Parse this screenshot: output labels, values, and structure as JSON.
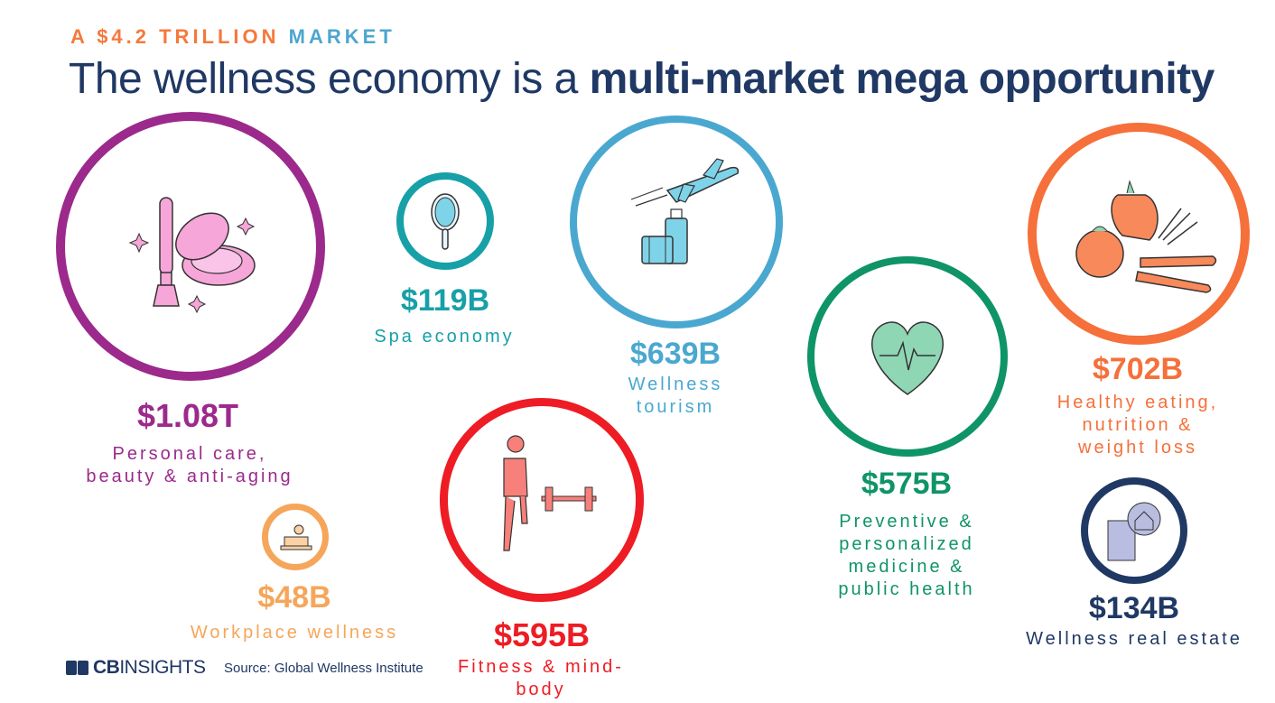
{
  "header": {
    "kicker_prefix": "A ",
    "kicker_amount": "$4.2 TRILLION",
    "kicker_suffix": " MARKET",
    "title_light": "The wellness economy is a ",
    "title_bold": "multi-market mega opportunity"
  },
  "markets": [
    {
      "id": "personal-care",
      "value": "$1.08T",
      "label": "Personal care,\nbeauty & anti-aging",
      "color": "#9b2a8c",
      "icon": "makeup-icon"
    },
    {
      "id": "spa",
      "value": "$119B",
      "label": "Spa economy",
      "color": "#17a0a8",
      "icon": "hand-mirror-icon"
    },
    {
      "id": "tourism",
      "value": "$639B",
      "label": "Wellness\ntourism",
      "color": "#4aa8d0",
      "icon": "airplane-luggage-icon"
    },
    {
      "id": "preventive",
      "value": "$575B",
      "label": "Preventive &\npersonalized\nmedicine &\npublic health",
      "color": "#0f9467",
      "icon": "heartbeat-icon"
    },
    {
      "id": "healthy-eating",
      "value": "$702B",
      "label": "Healthy eating,\nnutrition &\nweight loss",
      "color": "#f5703a",
      "icon": "vegetables-icon"
    },
    {
      "id": "workplace",
      "value": "$48B",
      "label": "Workplace wellness",
      "color": "#f5a65b",
      "icon": "desk-worker-icon"
    },
    {
      "id": "fitness",
      "value": "$595B",
      "label": "Fitness & mind-\nbody",
      "color": "#ee1c24",
      "icon": "runner-dumbbell-icon"
    },
    {
      "id": "real-estate",
      "value": "$134B",
      "label": "Wellness real estate",
      "color": "#1f3864",
      "icon": "buildings-icon"
    }
  ],
  "footer": {
    "logo_cb": "CB",
    "logo_insights": "INSIGHTS",
    "source": "Source: Global Wellness Institute"
  }
}
